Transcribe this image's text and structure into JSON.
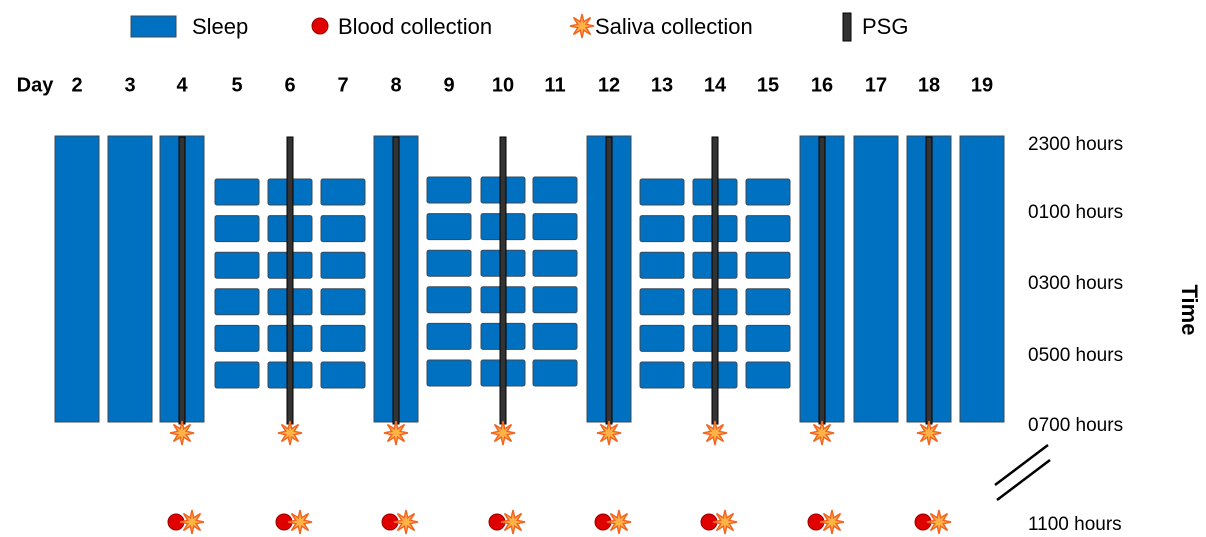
{
  "legend": [
    {
      "label": "Sleep"
    },
    {
      "label": "Blood collection"
    },
    {
      "label": "Saliva collection"
    },
    {
      "label": "PSG"
    }
  ],
  "day_label": "Day",
  "days": [
    "2",
    "3",
    "4",
    "5",
    "6",
    "7",
    "8",
    "9",
    "10",
    "11",
    "12",
    "13",
    "14",
    "15",
    "16",
    "17",
    "18",
    "19"
  ],
  "hours": [
    "2300 hours",
    "0100 hours",
    "0300 hours",
    "0500 hours",
    "0700 hours",
    "1100 hours"
  ],
  "axis_label": "Time"
}
